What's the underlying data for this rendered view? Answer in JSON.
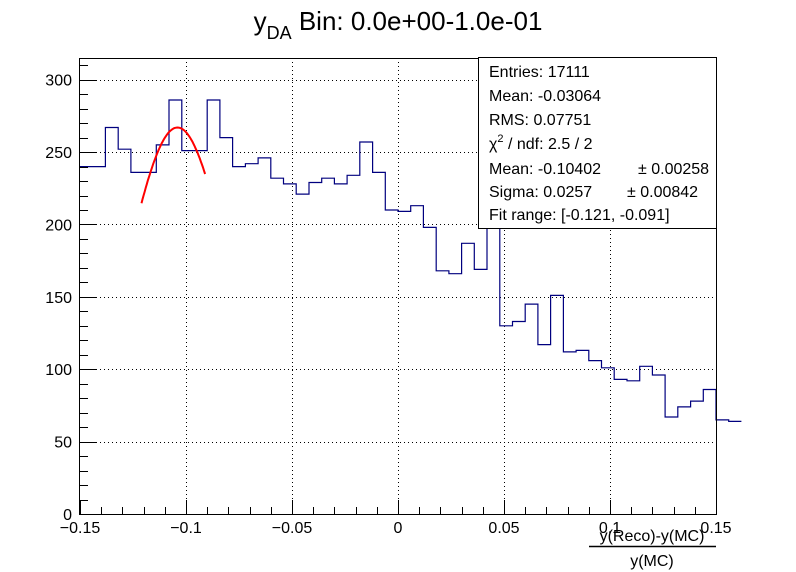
{
  "title": {
    "main": "y",
    "sub": "DA",
    "rest": " Bin: 0.0e+00-1.0e-01"
  },
  "stats": {
    "entries": "Entries: 17111",
    "mean": "Mean: -0.03064",
    "rms": "RMS: 0.07751",
    "chi2_prefix": "χ",
    "chi2_sup": "2",
    "chi2_rest": " / ndf: 2.5 / 2",
    "fit_mean": "Mean: -0.10402",
    "fit_mean_err": "± 0.00258",
    "fit_sigma": "Sigma: 0.0257",
    "fit_sigma_err": "± 0.00842",
    "fit_range": "Fit range: [-0.121, -0.091]"
  },
  "xaxis": {
    "numerator": "y(Reco)-y(MC)",
    "denominator": "y(MC)"
  },
  "colors": {
    "histogram": "#00007f",
    "fit": "#ff0000",
    "frame": "#000000",
    "grid": "#000000"
  },
  "chart_data": {
    "type": "histogram",
    "xlim": [
      -0.15,
      0.15
    ],
    "ylim": [
      0,
      315
    ],
    "bin_width": 0.006,
    "xticks": [
      -0.15,
      -0.1,
      -0.05,
      0,
      0.05,
      0.1,
      0.15
    ],
    "xtick_labels": [
      "−0.15",
      "−0.1",
      "−0.05",
      "0",
      "0.05",
      "0.1",
      "0.15"
    ],
    "yticks": [
      0,
      50,
      100,
      150,
      200,
      250,
      300
    ],
    "ytick_labels": [
      "0",
      "50",
      "100",
      "150",
      "200",
      "250",
      "300"
    ],
    "grid": true,
    "legend_position": "top-right",
    "counts": [
      240,
      240,
      267,
      252,
      236,
      236,
      255,
      286,
      251,
      251,
      286,
      260,
      240,
      242,
      246,
      232,
      228,
      221,
      229,
      232,
      228,
      234,
      257,
      236,
      210,
      209,
      213,
      198,
      168,
      166,
      187,
      169,
      215,
      130,
      133,
      145,
      117,
      151,
      112,
      113,
      106,
      101,
      93,
      92,
      102,
      96,
      67,
      74,
      78,
      86,
      65,
      64
    ],
    "fit": {
      "function": "gaus",
      "mean": -0.10402,
      "sigma": 0.0257,
      "constant": 267,
      "range": [
        -0.121,
        -0.091
      ]
    }
  }
}
